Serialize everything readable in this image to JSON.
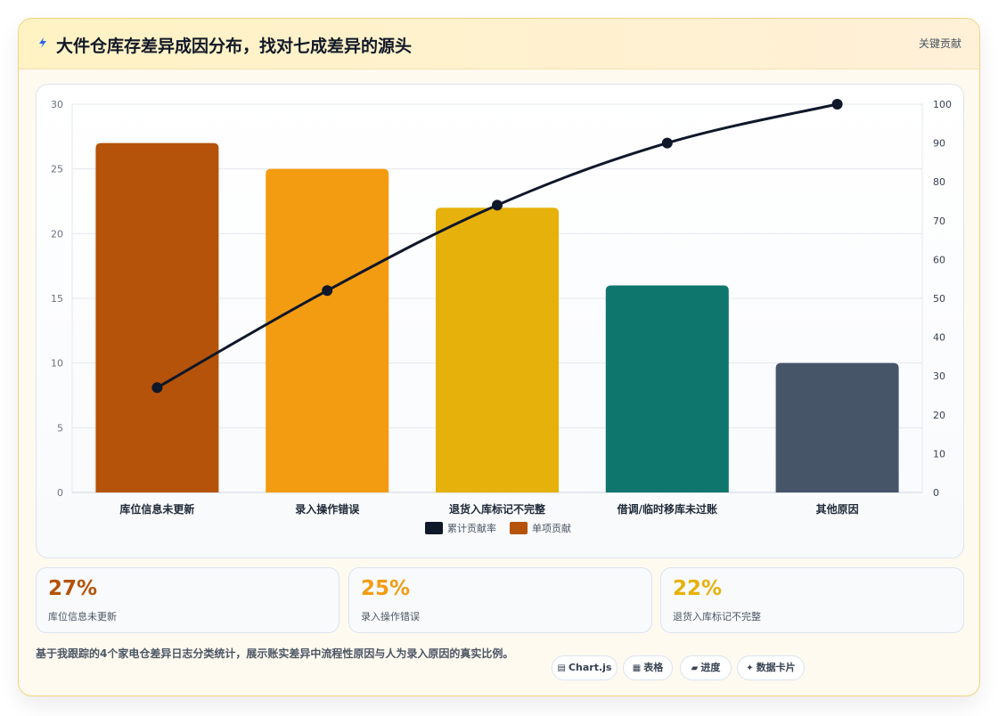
{
  "header": {
    "title": "大件仓库存差异成因分布，找对七成差异的源头",
    "badge": "关键贡献"
  },
  "chart_data": {
    "type": "bar",
    "categories": [
      "库位信息未更新",
      "录入操作错误",
      "退货入库标记不完整",
      "借调/临时移库未过账",
      "其他原因"
    ],
    "series": [
      {
        "name": "单项贡献",
        "type": "bar",
        "axis": "left",
        "values": [
          27,
          25,
          22,
          16,
          10
        ],
        "colors": [
          "#b45309",
          "#f39c12",
          "#e6b10a",
          "#0f766e",
          "#475569"
        ]
      },
      {
        "name": "累计贡献率",
        "type": "line",
        "axis": "right",
        "values": [
          27,
          52,
          74,
          90,
          100
        ],
        "color": "#0f172a"
      }
    ],
    "yticks_left": [
      0,
      5,
      10,
      15,
      20,
      25,
      30
    ],
    "yticks_right": [
      0,
      10,
      20,
      30,
      40,
      50,
      60,
      70,
      80,
      90,
      100
    ],
    "ylim_left": [
      0,
      30
    ],
    "ylim_right": [
      0,
      100
    ],
    "grid": true,
    "legend": {
      "position": "bottom",
      "entries": [
        {
          "label": "累计贡献率",
          "color": "#0f172a"
        },
        {
          "label": "单项贡献",
          "color": "#b45309"
        }
      ]
    }
  },
  "stats": [
    {
      "value": "27%",
      "label": "库位信息未更新",
      "color": "#b45309"
    },
    {
      "value": "25%",
      "label": "录入操作错误",
      "color": "#f39c12"
    },
    {
      "value": "22%",
      "label": "退货入库标记不完整",
      "color": "#e6b10a"
    }
  ],
  "footer": {
    "note": "基于我跟踪的4个家电仓差异日志分类统计，展示账实差异中流程性原因与人为录入原因的真实比例。",
    "tags": [
      {
        "icon": "chart-icon",
        "label": "Chart.js"
      },
      {
        "icon": "table-icon",
        "label": "表格"
      },
      {
        "icon": "progress-icon",
        "label": "进度"
      },
      {
        "icon": "card-icon",
        "label": "数据卡片"
      }
    ]
  }
}
